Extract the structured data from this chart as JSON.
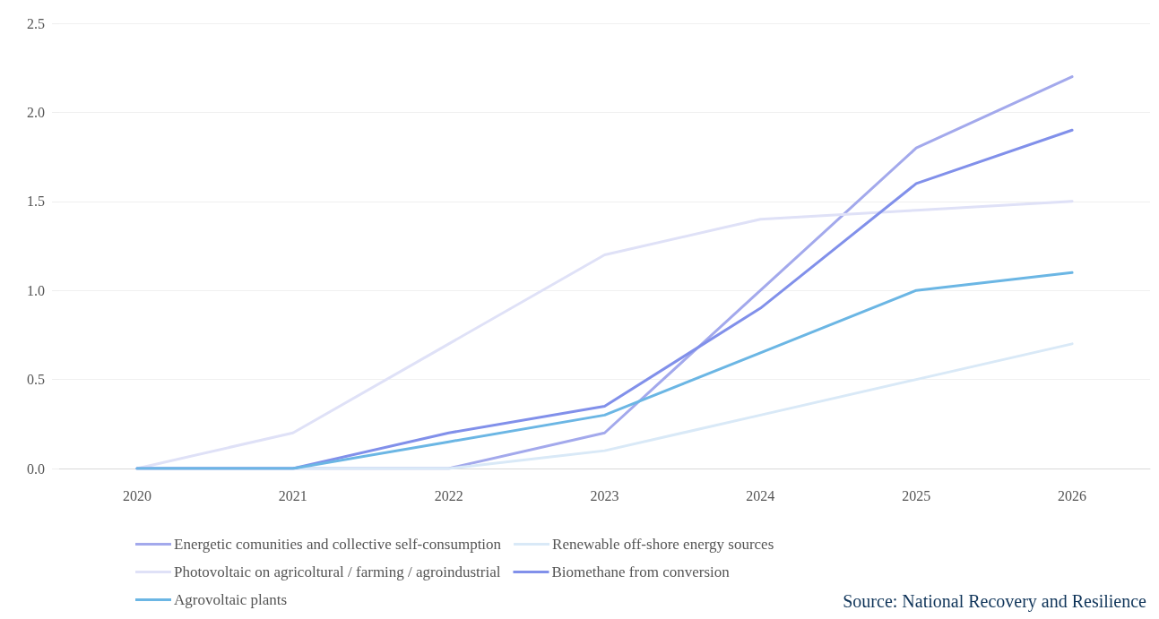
{
  "chart_data": {
    "type": "line",
    "categories": [
      "2020",
      "2021",
      "2022",
      "2023",
      "2024",
      "2025",
      "2026"
    ],
    "series": [
      {
        "name": "Energetic comunities and collective self-consumption",
        "color": "#a3a9ec",
        "values": [
          0,
          0,
          0,
          0.2,
          1.0,
          1.8,
          2.2
        ]
      },
      {
        "name": "Renewable off-shore energy sources",
        "color": "#d9e9f7",
        "values": [
          0,
          0,
          0,
          0.1,
          0.3,
          0.5,
          0.7
        ]
      },
      {
        "name": "Photovoltaic on agricoltural / farming / agroindustrial",
        "color": "#dfe1f7",
        "values": [
          0,
          0.2,
          0.7,
          1.2,
          1.4,
          1.45,
          1.5
        ]
      },
      {
        "name": "Biomethane from conversion",
        "color": "#8190ea",
        "values": [
          0,
          0,
          0.2,
          0.35,
          0.9,
          1.6,
          1.9
        ]
      },
      {
        "name": "Agrovoltaic plants",
        "color": "#6bb6e4",
        "values": [
          0,
          0,
          0.15,
          0.3,
          0.65,
          1.0,
          1.1
        ]
      }
    ],
    "ylim": [
      0,
      2.5
    ],
    "yticks": [
      {
        "value": 0,
        "label": "0.0"
      },
      0.5,
      {
        "value": 1,
        "label": "1.0"
      },
      1.5,
      {
        "value": 2,
        "label": "2.0"
      },
      2.5
    ],
    "grid": "y",
    "legend": "bottom",
    "marker": "none",
    "line_style": "solid",
    "annotations": [
      "Source: National Recovery and Resilience"
    ]
  }
}
